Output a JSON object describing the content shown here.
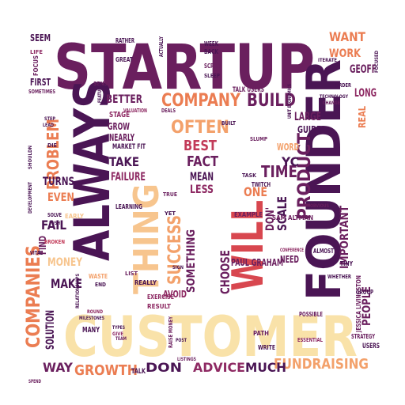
{
  "palette": {
    "purple_dark": "#4a1554",
    "purple": "#6a1f5e",
    "magenta": "#8e2a63",
    "crimson": "#c23b59",
    "red": "#d8474f",
    "orange": "#eb7d52",
    "peach": "#f3a16b",
    "sand": "#f7c58e",
    "cream": "#f9e2a9"
  },
  "words": [
    {
      "text": "STARTUP"
    },
    {
      "text": "CUSTOMER"
    },
    {
      "text": "ALWAYS"
    },
    {
      "text": "FOUNDER"
    },
    {
      "text": "THING"
    },
    {
      "text": "WILL"
    },
    {
      "text": "COMPANIES"
    },
    {
      "text": "COMPANY"
    },
    {
      "text": "BUILD"
    },
    {
      "text": "PRODUCT"
    },
    {
      "text": "PROBLEM"
    },
    {
      "text": "SUCCESS"
    },
    {
      "text": "GROWTH"
    },
    {
      "text": "FUNDRAISING"
    },
    {
      "text": "ADVICE"
    },
    {
      "text": "MUCH"
    },
    {
      "text": "DON"
    },
    {
      "text": "WAY"
    },
    {
      "text": "OFTEN"
    },
    {
      "text": "TIME"
    },
    {
      "text": "BEST"
    },
    {
      "text": "FACT"
    },
    {
      "text": "TAKE"
    },
    {
      "text": "BETTER"
    },
    {
      "text": "FAILURE"
    },
    {
      "text": "MEAN"
    },
    {
      "text": "LESS"
    },
    {
      "text": "ONE"
    },
    {
      "text": "YC"
    },
    {
      "text": "SCALE"
    },
    {
      "text": "DON'"
    },
    {
      "text": "SOMETHING"
    },
    {
      "text": "CHOOSE"
    },
    {
      "text": "MONEY"
    },
    {
      "text": "MAKE"
    },
    {
      "text": "EVEN"
    },
    {
      "text": "FAIL"
    },
    {
      "text": "FIND"
    },
    {
      "text": "SOLUTION"
    },
    {
      "text": "TURNS"
    },
    {
      "text": "FIRST"
    },
    {
      "text": "SEEM"
    },
    {
      "text": "WANT"
    },
    {
      "text": "WORK"
    },
    {
      "text": "GEOFF"
    },
    {
      "text": "LONG"
    },
    {
      "text": "REAL"
    },
    {
      "text": "LARGE"
    },
    {
      "text": "GUIDE"
    },
    {
      "text": "WORD"
    },
    {
      "text": "IMPORTANT"
    },
    {
      "text": "PEOPLE"
    },
    {
      "text": "PAUL GRAHAM"
    },
    {
      "text": "NEED"
    },
    {
      "text": "AVOID"
    },
    {
      "text": "GROW"
    },
    {
      "text": "NEARLY"
    },
    {
      "text": "STAGE"
    },
    {
      "text": "TALK USERS"
    },
    {
      "text": "SAM ALTMAN"
    },
    {
      "text": "JESSICA LIVINGSTON"
    },
    {
      "text": "TWITCH"
    },
    {
      "text": "MANY"
    },
    {
      "text": "TALK"
    },
    {
      "text": "USERS"
    },
    {
      "text": "PATH"
    },
    {
      "text": "STRATEGY"
    },
    {
      "text": "WRITE"
    },
    {
      "text": "GROUP"
    },
    {
      "text": "TINY"
    },
    {
      "text": "ALMOST"
    },
    {
      "text": "POSSIBLE"
    },
    {
      "text": "ESSENTIAL"
    },
    {
      "text": "RATHER"
    },
    {
      "text": "GREAT"
    },
    {
      "text": "WEEK"
    },
    {
      "text": "BACK"
    },
    {
      "text": "ACTUALLY"
    },
    {
      "text": "SCRIPT"
    },
    {
      "text": "CONFERENCE"
    },
    {
      "text": "LEARNING"
    },
    {
      "text": "MARKET FIT"
    },
    {
      "text": "EXAMPLE"
    },
    {
      "text": "RESULT"
    },
    {
      "text": "EXERCISE"
    },
    {
      "text": "REALLY"
    },
    {
      "text": "WASTE"
    },
    {
      "text": "LIST"
    },
    {
      "text": "END"
    },
    {
      "text": "SENSE"
    },
    {
      "text": "FOCUS"
    },
    {
      "text": "LIFE"
    },
    {
      "text": "SOMETIMES"
    },
    {
      "text": "BROKEN"
    },
    {
      "text": "VITAL"
    },
    {
      "text": "EARLY"
    },
    {
      "text": "ORDER"
    },
    {
      "text": "BUILT"
    },
    {
      "text": "SLUMP"
    },
    {
      "text": "TRUE"
    },
    {
      "text": "YET"
    },
    {
      "text": "TASK"
    },
    {
      "text": "SIGN"
    },
    {
      "text": "ROUND"
    },
    {
      "text": "SLEEP"
    },
    {
      "text": "MILESTONES"
    },
    {
      "text": "RELATIONSHIPS"
    },
    {
      "text": "SPEND"
    },
    {
      "text": "POST"
    },
    {
      "text": "SHOULDN"
    },
    {
      "text": "DEVELOPMENT"
    },
    {
      "text": "RAISE MONEY"
    },
    {
      "text": "VALUATION"
    },
    {
      "text": "DEALS"
    },
    {
      "text": "TECHNOLOGY"
    },
    {
      "text": "FEATURES"
    },
    {
      "text": "CHANGE"
    },
    {
      "text": "SOLVE"
    },
    {
      "text": "DIE"
    },
    {
      "text": "ITERATE"
    },
    {
      "text": "FOCUSED"
    },
    {
      "text": "LISTINGS"
    },
    {
      "text": "WHETHER"
    },
    {
      "text": "OBVIOUS"
    },
    {
      "text": "TYPES"
    },
    {
      "text": "GIVE"
    },
    {
      "text": "TEAM"
    },
    {
      "text": "STEP"
    },
    {
      "text": "LEAD"
    },
    {
      "text": "PUSH"
    },
    {
      "text": "UNIT ECONOMICS"
    }
  ]
}
